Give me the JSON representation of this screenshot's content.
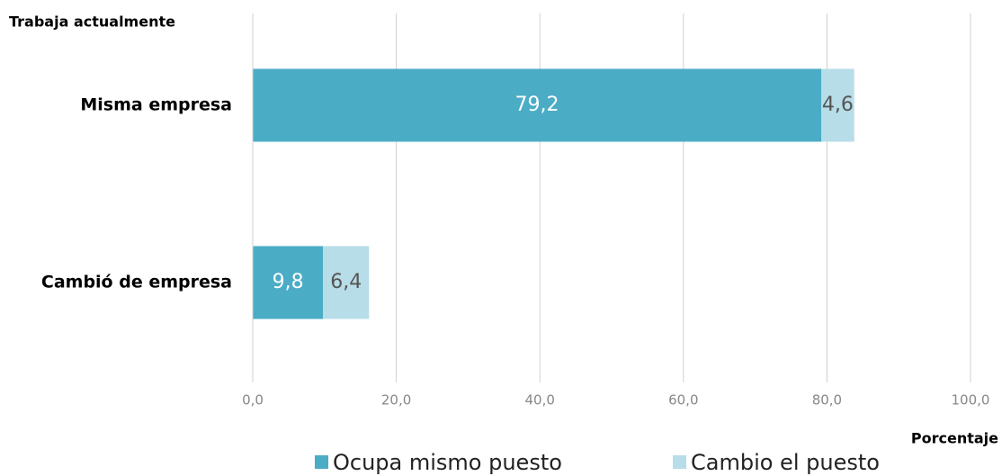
{
  "chart_data": {
    "type": "stacked_barh",
    "y_label": "Trabaja actualmente",
    "x_label": "Porcentaje",
    "categories": [
      "Misma empresa",
      "Cambió de empresa"
    ],
    "series": [
      {
        "name": "Ocupa mismo puesto",
        "color": "#4bacc6",
        "values": [
          79.2,
          9.8
        ],
        "value_labels": [
          "79,2",
          "9,8"
        ]
      },
      {
        "name": "Cambio el puesto",
        "color": "#b7dde8",
        "values": [
          4.6,
          6.4
        ],
        "value_labels": [
          "4,6",
          "6,4"
        ]
      }
    ],
    "xlim": [
      0,
      100
    ],
    "xticks": [
      {
        "value": 0,
        "label": "0,0"
      },
      {
        "value": 20,
        "label": "20,0"
      },
      {
        "value": 40,
        "label": "40,0"
      },
      {
        "value": 60,
        "label": "60,0"
      },
      {
        "value": 80,
        "label": "80,0"
      },
      {
        "value": 100,
        "label": "100,0"
      }
    ],
    "grid": true
  }
}
